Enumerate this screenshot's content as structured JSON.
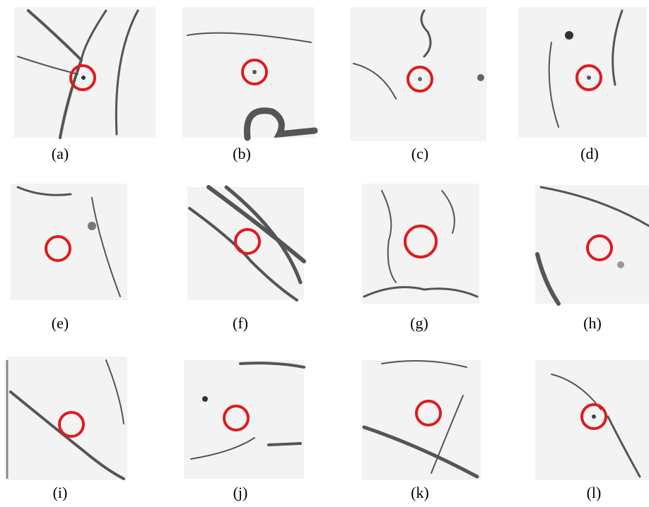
{
  "panels": [
    {
      "label": "(a)"
    },
    {
      "label": "(b)"
    },
    {
      "label": "(c)"
    },
    {
      "label": "(d)"
    },
    {
      "label": "(e)"
    },
    {
      "label": "(f)"
    },
    {
      "label": "(g)"
    },
    {
      "label": "(h)"
    },
    {
      "label": "(i)"
    },
    {
      "label": "(j)"
    },
    {
      "label": "(k)"
    },
    {
      "label": "(l)"
    }
  ]
}
